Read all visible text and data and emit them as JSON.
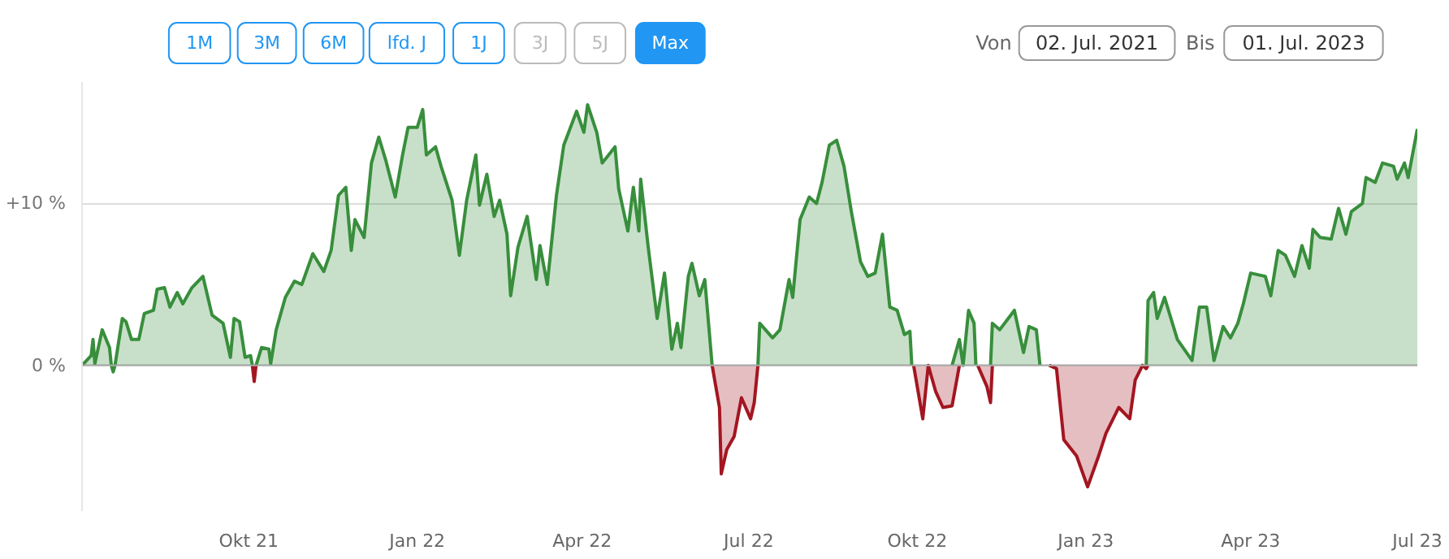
{
  "chart_data": {
    "type": "area",
    "annotations": [
      "1M",
      "3M",
      "6M",
      "lfd. J",
      "1J",
      "3J",
      "5J",
      "Max",
      "Von",
      "02. Jul. 2021",
      "Bis",
      "01. Jul. 2023"
    ],
    "x": [
      "2021-07-02",
      "2021-07-07",
      "2021-07-08",
      "2021-07-09",
      "2021-07-13",
      "2021-07-17",
      "2021-07-18",
      "2021-07-19",
      "2021-07-20",
      "2021-07-24",
      "2021-07-26",
      "2021-07-29",
      "2021-08-02",
      "2021-08-05",
      "2021-08-10",
      "2021-08-12",
      "2021-08-16",
      "2021-08-19",
      "2021-08-23",
      "2021-08-26",
      "2021-08-31",
      "2021-09-06",
      "2021-09-11",
      "2021-09-17",
      "2021-09-21",
      "2021-09-23",
      "2021-09-26",
      "2021-09-29",
      "2021-10-02",
      "2021-10-03",
      "2021-10-04",
      "2021-10-05",
      "2021-10-08",
      "2021-10-12",
      "2021-10-13",
      "2021-10-16",
      "2021-10-21",
      "2021-10-26",
      "2021-10-30",
      "2021-11-05",
      "2021-11-11",
      "2021-11-15",
      "2021-11-19",
      "2021-11-23",
      "2021-11-26",
      "2021-11-28",
      "2021-12-03",
      "2021-12-07",
      "2021-12-11",
      "2021-12-15",
      "2021-12-20",
      "2021-12-24",
      "2021-12-27",
      "2022-01-01",
      "2022-01-04",
      "2022-01-06",
      "2022-01-11",
      "2022-01-14",
      "2022-01-20",
      "2022-01-24",
      "2022-01-28",
      "2022-02-02",
      "2022-02-04",
      "2022-02-08",
      "2022-02-12",
      "2022-02-15",
      "2022-02-19",
      "2022-02-21",
      "2022-02-25",
      "2022-03-02",
      "2022-03-07",
      "2022-03-09",
      "2022-03-13",
      "2022-03-18",
      "2022-03-22",
      "2022-03-29",
      "2022-04-02",
      "2022-04-04",
      "2022-04-09",
      "2022-04-12",
      "2022-04-19",
      "2022-04-21",
      "2022-04-26",
      "2022-04-29",
      "2022-05-02",
      "2022-05-03",
      "2022-05-07",
      "2022-05-12",
      "2022-05-16",
      "2022-05-20",
      "2022-05-23",
      "2022-05-25",
      "2022-05-29",
      "2022-05-31",
      "2022-06-04",
      "2022-06-07",
      "2022-06-11",
      "2022-06-15",
      "2022-06-16",
      "2022-06-19",
      "2022-06-23",
      "2022-06-27",
      "2022-07-02",
      "2022-07-04",
      "2022-07-06",
      "2022-07-07",
      "2022-07-14",
      "2022-07-18",
      "2022-07-23",
      "2022-07-25",
      "2022-07-29",
      "2022-08-03",
      "2022-08-07",
      "2022-08-10",
      "2022-08-14",
      "2022-08-18",
      "2022-08-22",
      "2022-08-26",
      "2022-08-31",
      "2022-09-04",
      "2022-09-08",
      "2022-09-12",
      "2022-09-16",
      "2022-09-20",
      "2022-09-24",
      "2022-09-27",
      "2022-09-28",
      "2022-09-29",
      "2022-10-04",
      "2022-10-07",
      "2022-10-11",
      "2022-10-15",
      "2022-10-20",
      "2022-10-24",
      "2022-10-26",
      "2022-10-29",
      "2022-11-01",
      "2022-11-02",
      "2022-11-03",
      "2022-11-08",
      "2022-11-10",
      "2022-11-11",
      "2022-11-15",
      "2022-11-23",
      "2022-11-28",
      "2022-12-01",
      "2022-12-05",
      "2022-12-07",
      "2022-12-12",
      "2022-12-16",
      "2022-12-20",
      "2022-12-27",
      "2023-01-02",
      "2023-01-08",
      "2023-01-12",
      "2023-01-19",
      "2023-01-25",
      "2023-01-28",
      "2023-02-01",
      "2023-02-03",
      "2023-02-04",
      "2023-02-07",
      "2023-02-09",
      "2023-02-13",
      "2023-02-20",
      "2023-02-28",
      "2023-03-04",
      "2023-03-08",
      "2023-03-12",
      "2023-03-17",
      "2023-03-21",
      "2023-03-25",
      "2023-03-28",
      "2023-04-01",
      "2023-04-09",
      "2023-04-12",
      "2023-04-16",
      "2023-04-20",
      "2023-04-25",
      "2023-04-29",
      "2023-05-03",
      "2023-05-05",
      "2023-05-09",
      "2023-05-15",
      "2023-05-19",
      "2023-05-23",
      "2023-05-26",
      "2023-06-01",
      "2023-06-03",
      "2023-06-08",
      "2023-06-12",
      "2023-06-18",
      "2023-06-20",
      "2023-06-24",
      "2023-06-26",
      "2023-07-01"
    ],
    "series": [
      {
        "color": "#388e3c",
        "values": [
          0.0,
          0.6,
          1.6,
          0.1,
          2.2,
          1.1,
          0.0,
          -0.4,
          0.0,
          2.9,
          2.7,
          1.6,
          1.6,
          3.2,
          3.4,
          4.7,
          4.8,
          3.6,
          4.5,
          3.8,
          4.8,
          5.5,
          3.1,
          2.6,
          0.5,
          2.9,
          2.7,
          0.5,
          0.6,
          0.0,
          null,
          0.0,
          1.1,
          1.0,
          0.1,
          2.2,
          4.2,
          5.2,
          5.0,
          6.9,
          5.8,
          7.1,
          10.5,
          11.0,
          7.1,
          9.0,
          7.9,
          12.5,
          14.1,
          12.6,
          10.4,
          13.0,
          14.7,
          14.7,
          15.8,
          13.0,
          13.5,
          12.3,
          10.2,
          6.8,
          10.2,
          13.0,
          9.9,
          11.8,
          9.2,
          10.2,
          8.1,
          4.3,
          7.3,
          9.2,
          5.3,
          7.4,
          5.0,
          10.5,
          13.6,
          15.7,
          14.4,
          16.1,
          14.4,
          12.5,
          13.5,
          10.9,
          8.3,
          11.0,
          8.3,
          11.5,
          7.4,
          2.9,
          5.7,
          1.0,
          2.6,
          1.1,
          5.5,
          6.3,
          4.3,
          5.3,
          0.0,
          null,
          null,
          null,
          null,
          null,
          null,
          null,
          0.0,
          2.6,
          1.7,
          2.2,
          5.3,
          4.2,
          9.0,
          10.4,
          10.0,
          11.3,
          13.6,
          13.9,
          12.3,
          9.5,
          6.4,
          5.5,
          5.7,
          8.1,
          3.6,
          3.4,
          1.9,
          2.1,
          0.0,
          null,
          null,
          null,
          null,
          null,
          0.0,
          1.6,
          0.0,
          3.4,
          2.6,
          0.0,
          null,
          null,
          0.0,
          2.6,
          2.2,
          3.4,
          0.8,
          2.4,
          2.2,
          0.0,
          null,
          null,
          null,
          null,
          null,
          null,
          null,
          null,
          null,
          null,
          null,
          0.0,
          4.0,
          4.5,
          2.9,
          4.2,
          1.6,
          0.3,
          3.6,
          3.6,
          0.3,
          2.4,
          1.7,
          2.6,
          3.8,
          5.7,
          5.5,
          4.3,
          7.1,
          6.8,
          5.5,
          7.4,
          6.0,
          8.4,
          7.9,
          7.8,
          9.7,
          8.1,
          9.5,
          10.0,
          11.6,
          11.3,
          12.5,
          12.3,
          11.5,
          12.5,
          11.6,
          14.6
        ]
      },
      {
        "color": "#a31621",
        "values": [
          null,
          null,
          null,
          null,
          null,
          null,
          null,
          null,
          null,
          null,
          null,
          null,
          null,
          null,
          null,
          null,
          null,
          null,
          null,
          null,
          null,
          null,
          null,
          null,
          null,
          null,
          null,
          null,
          null,
          0.0,
          -1.0,
          0.0,
          null,
          null,
          null,
          null,
          null,
          null,
          null,
          null,
          null,
          null,
          null,
          null,
          null,
          null,
          null,
          null,
          null,
          null,
          null,
          null,
          null,
          null,
          null,
          null,
          null,
          null,
          null,
          null,
          null,
          null,
          null,
          null,
          null,
          null,
          null,
          null,
          null,
          null,
          null,
          null,
          null,
          null,
          null,
          null,
          null,
          null,
          null,
          null,
          null,
          null,
          null,
          null,
          null,
          null,
          null,
          null,
          null,
          null,
          null,
          null,
          null,
          null,
          null,
          null,
          0.0,
          -2.6,
          -6.7,
          -5.2,
          -4.4,
          -2.0,
          -3.3,
          -2.3,
          0.0,
          null,
          null,
          null,
          null,
          null,
          null,
          null,
          null,
          null,
          null,
          null,
          null,
          null,
          null,
          null,
          null,
          null,
          null,
          null,
          null,
          null,
          null,
          0.0,
          -3.3,
          0.0,
          -1.6,
          -2.6,
          -2.5,
          0.0,
          null,
          null,
          null,
          null,
          0.0,
          -1.3,
          -2.3,
          0.0,
          null,
          null,
          null,
          null,
          null,
          null,
          0.0,
          -0.2,
          -4.6,
          -5.6,
          -7.5,
          -5.6,
          -4.2,
          -2.6,
          -3.3,
          -0.9,
          0.0,
          -0.2,
          0.0,
          null,
          null,
          null,
          null,
          null,
          null,
          null,
          null,
          null,
          null,
          null,
          null,
          null,
          null,
          null,
          null,
          null,
          null,
          null,
          null,
          null,
          null,
          null,
          null,
          null,
          null,
          null,
          null,
          null,
          null,
          null,
          null,
          null,
          null,
          null
        ]
      }
    ],
    "xlim": [
      "2021-07-02",
      "2023-07-01"
    ],
    "xticks": [
      {
        "value": "2021-10-01",
        "label": "Okt 21"
      },
      {
        "value": "2022-01-01",
        "label": "Jan 22"
      },
      {
        "value": "2022-04-01",
        "label": "Apr 22"
      },
      {
        "value": "2022-07-01",
        "label": "Jul 22"
      },
      {
        "value": "2022-10-01",
        "label": "Okt 22"
      },
      {
        "value": "2023-01-01",
        "label": "Jan 23"
      },
      {
        "value": "2023-04-01",
        "label": "Apr 23"
      },
      {
        "value": "2023-07-01",
        "label": "Jul 23"
      }
    ],
    "ylim": [
      -9,
      17.5
    ],
    "yticks": [
      {
        "value": 0,
        "label": "0 %"
      },
      {
        "value": 10,
        "label": "+10 %"
      }
    ],
    "grid": "y"
  }
}
